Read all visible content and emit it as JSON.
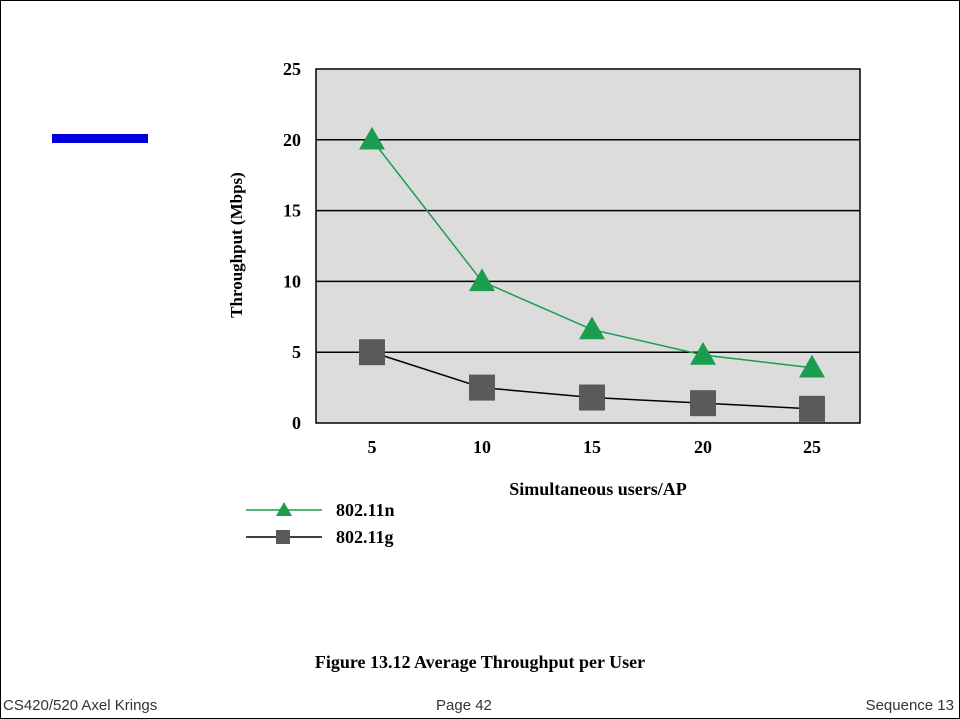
{
  "colors": {
    "accent": "#0000dd",
    "plot_bg": "#dcdcdc",
    "series_n": "#1a9d4e",
    "series_g": "#5a5a5a",
    "series_g_line": "#000000"
  },
  "chart_data": {
    "type": "line",
    "title": "",
    "xlabel": "Simultaneous users/AP",
    "ylabel": "Throughput (Mbps)",
    "categories": [
      5,
      10,
      15,
      20,
      25
    ],
    "xlim": [
      0,
      25
    ],
    "ylim": [
      0,
      25
    ],
    "yticks": [
      "0",
      "5",
      "10",
      "15",
      "20",
      "25"
    ],
    "xticks": [
      "5",
      "10",
      "15",
      "20",
      "25"
    ],
    "grid": true,
    "legend": "bottom-left",
    "series": [
      {
        "name": "802.11n",
        "marker": "triangle",
        "values": [
          20,
          10,
          6.6,
          4.8,
          3.9
        ]
      },
      {
        "name": "802.11g",
        "marker": "square",
        "values": [
          5,
          2.5,
          1.8,
          1.4,
          1.0
        ]
      }
    ]
  },
  "caption": "Figure 13.12  Average Throughput per User",
  "footer": {
    "left": "CS420/520 Axel Krings",
    "center": "Page 42",
    "right": "Sequence 13"
  }
}
